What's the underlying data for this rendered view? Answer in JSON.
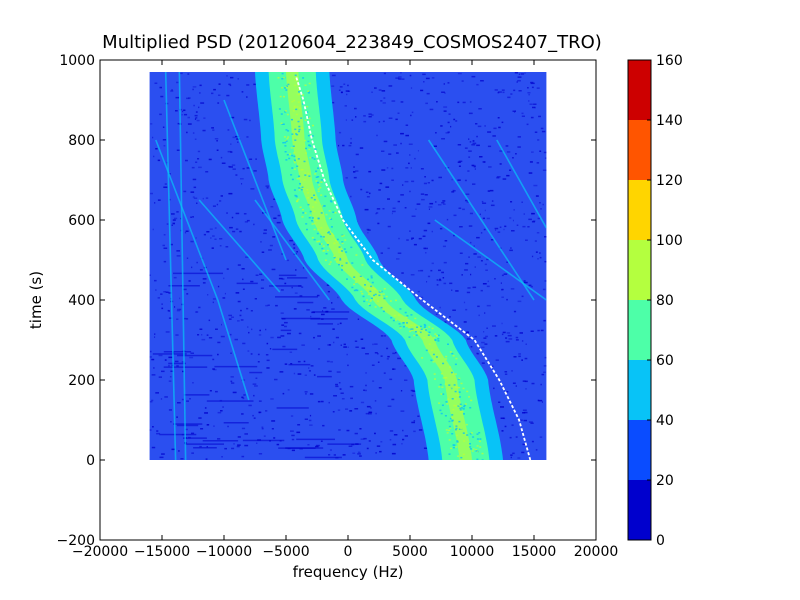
{
  "chart_data": {
    "type": "heatmap",
    "title": "Multiplied PSD (20120604_223849_COSMOS2407_TRO)",
    "xlabel": "frequency (Hz)",
    "ylabel": "time (s)",
    "xlim": [
      -20000,
      20000
    ],
    "ylim": [
      -200,
      1000
    ],
    "xticks": [
      -20000,
      -15000,
      -10000,
      -5000,
      0,
      5000,
      10000,
      15000,
      20000
    ],
    "yticks": [
      -200,
      0,
      200,
      400,
      600,
      800,
      1000
    ],
    "data_extent": {
      "x": [
        -16000,
        16000
      ],
      "y": [
        0,
        970
      ]
    },
    "grid": false,
    "colormap": "jet",
    "colorbar": {
      "ticks": [
        0,
        20,
        40,
        60,
        80,
        100,
        120,
        140,
        160
      ],
      "bands": [
        {
          "from": 0,
          "to": 20,
          "color": "#0000cd"
        },
        {
          "from": 20,
          "to": 40,
          "color": "#0a4cff"
        },
        {
          "from": 40,
          "to": 60,
          "color": "#08c3f7"
        },
        {
          "from": 60,
          "to": 80,
          "color": "#4dffa8"
        },
        {
          "from": 80,
          "to": 100,
          "color": "#b4ff3f"
        },
        {
          "from": 100,
          "to": 120,
          "color": "#ffd500"
        },
        {
          "from": 120,
          "to": 140,
          "color": "#ff5500"
        },
        {
          "from": 140,
          "to": 160,
          "color": "#cd0000"
        }
      ]
    },
    "background_level_color": "#2b4ff0",
    "main_signal": {
      "description_points": [
        {
          "t": 0,
          "f": 9500
        },
        {
          "t": 200,
          "f": 8300
        },
        {
          "t": 300,
          "f": 6500
        },
        {
          "t": 400,
          "f": 2500
        },
        {
          "t": 500,
          "f": -500
        },
        {
          "t": 600,
          "f": -2300
        },
        {
          "t": 700,
          "f": -3400
        },
        {
          "t": 800,
          "f": -4000
        },
        {
          "t": 970,
          "f": -4500
        }
      ],
      "halfwidth_hz": [
        {
          "level": 40,
          "color": "#08c3f7",
          "w": 3000
        },
        {
          "level": 60,
          "color": "#4dffa8",
          "w": 1900
        },
        {
          "level": 80,
          "color": "#b4ff3f",
          "w": 500
        }
      ]
    },
    "trace": {
      "color": "#ffffff",
      "points": [
        {
          "t": 0,
          "f": 14700
        },
        {
          "t": 100,
          "f": 13800
        },
        {
          "t": 200,
          "f": 12200
        },
        {
          "t": 300,
          "f": 10200
        },
        {
          "t": 400,
          "f": 6000
        },
        {
          "t": 500,
          "f": 2000
        },
        {
          "t": 600,
          "f": -400
        },
        {
          "t": 700,
          "f": -1900
        },
        {
          "t": 800,
          "f": -2900
        },
        {
          "t": 900,
          "f": -3600
        },
        {
          "t": 960,
          "f": -4200
        }
      ]
    },
    "faint_lines": [
      [
        {
          "t": 970,
          "f": -14700
        },
        {
          "t": 0,
          "f": -13900
        }
      ],
      [
        {
          "t": 970,
          "f": -13600
        },
        {
          "t": 0,
          "f": -13100
        }
      ],
      [
        {
          "t": 800,
          "f": -15500
        },
        {
          "t": 400,
          "f": -10500
        },
        {
          "t": 150,
          "f": -8000
        }
      ],
      [
        {
          "t": 900,
          "f": -10000
        },
        {
          "t": 500,
          "f": -5000
        }
      ],
      [
        {
          "t": 650,
          "f": -12000
        },
        {
          "t": 420,
          "f": -5500
        }
      ],
      [
        {
          "t": 650,
          "f": -7500
        },
        {
          "t": 400,
          "f": -1500
        }
      ],
      [
        {
          "t": 640,
          "f": -4000
        },
        {
          "t": 320,
          "f": 4000
        },
        {
          "t": 60,
          "f": 8000
        }
      ],
      [
        {
          "t": 800,
          "f": 6500
        },
        {
          "t": 400,
          "f": 15000
        }
      ],
      [
        {
          "t": 800,
          "f": 12000
        },
        {
          "t": 580,
          "f": 16000
        }
      ],
      [
        {
          "t": 600,
          "f": 7000
        },
        {
          "t": 400,
          "f": 16000
        }
      ]
    ]
  }
}
